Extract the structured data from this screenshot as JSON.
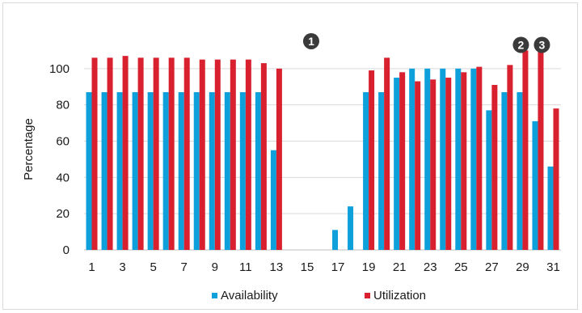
{
  "chart_data": {
    "type": "bar",
    "title": "",
    "xlabel": "",
    "ylabel": "Percentage",
    "ylim": [
      0,
      120
    ],
    "yticks": [
      0,
      20,
      40,
      60,
      80,
      100
    ],
    "x": [
      1,
      2,
      3,
      4,
      5,
      6,
      7,
      8,
      9,
      10,
      11,
      12,
      13,
      14,
      15,
      16,
      17,
      18,
      19,
      20,
      21,
      22,
      23,
      24,
      25,
      26,
      27,
      28,
      29,
      30,
      31
    ],
    "x_tick_labels_shown": [
      1,
      3,
      5,
      7,
      9,
      11,
      13,
      15,
      17,
      19,
      21,
      23,
      25,
      27,
      29,
      31
    ],
    "grid": true,
    "legend_position": "bottom",
    "series": [
      {
        "name": "Availability",
        "color": "#0ea0db",
        "values": [
          87,
          87,
          87,
          87,
          87,
          87,
          87,
          87,
          87,
          87,
          87,
          87,
          55,
          0,
          0,
          0,
          11,
          24,
          87,
          87,
          95,
          100,
          100,
          100,
          100,
          100,
          77,
          87,
          87,
          71,
          46
        ]
      },
      {
        "name": "Utilization",
        "color": "#d8202e",
        "values": [
          106,
          106,
          107,
          106,
          106,
          106,
          106,
          105,
          105,
          105,
          105,
          103,
          100,
          0,
          0,
          0,
          0,
          0,
          99,
          106,
          98,
          93,
          94,
          95,
          98,
          101,
          91,
          102,
          110,
          110,
          78
        ]
      }
    ],
    "annotations": [
      {
        "label": "1",
        "x": 15,
        "y": 116
      },
      {
        "label": "2",
        "x": 29,
        "y": 114
      },
      {
        "label": "3",
        "x": 30,
        "y": 114
      }
    ]
  }
}
